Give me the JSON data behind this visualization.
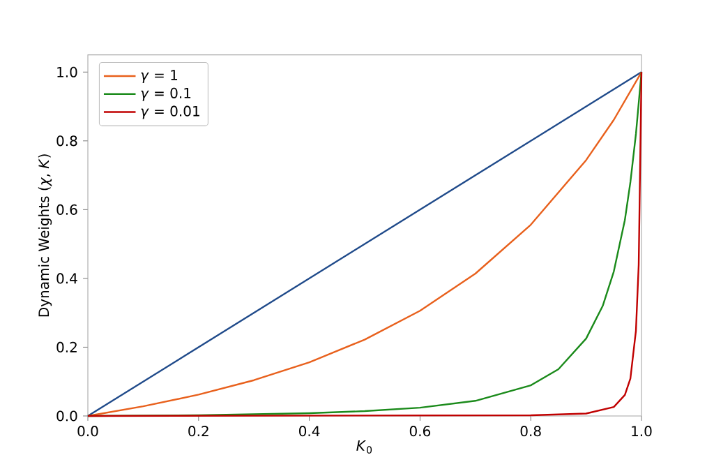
{
  "chart_data": {
    "type": "line",
    "xlabel": "*K*$_{0}$",
    "ylabel": "Dynamic Weights (*χ*, *K*)",
    "xlim": [
      0,
      1
    ],
    "ylim": [
      0,
      1.05
    ],
    "xticks": [
      {
        "value": 0,
        "label": "0.0"
      },
      0.2,
      0.4,
      0.6,
      0.8,
      {
        "value": 1,
        "label": "1.0"
      }
    ],
    "yticks": [
      {
        "value": 0,
        "label": "0.0"
      },
      0.2,
      0.4,
      0.6,
      0.8,
      {
        "value": 1,
        "label": "1.0"
      }
    ],
    "legend": "top left",
    "series": [
      {
        "color": "#1f4a8a",
        "x": [
          0,
          1
        ],
        "values": [
          0,
          1
        ]
      },
      {
        "name": "*γ* = 1",
        "color": "#e8601c",
        "x": [
          0,
          0.1,
          0.2,
          0.3,
          0.4,
          0.5,
          0.6,
          0.7,
          0.8,
          0.9,
          0.95,
          1
        ],
        "values": [
          0,
          0.028,
          0.062,
          0.104,
          0.156,
          0.222,
          0.306,
          0.414,
          0.556,
          0.744,
          0.861,
          1
        ]
      },
      {
        "name": "*γ* = 0.1",
        "color": "#1a8a1a",
        "x": [
          0,
          0.2,
          0.4,
          0.5,
          0.6,
          0.7,
          0.8,
          0.85,
          0.9,
          0.93,
          0.95,
          0.97,
          0.98,
          0.99,
          1
        ],
        "values": [
          0,
          0.002,
          0.008,
          0.014,
          0.024,
          0.044,
          0.089,
          0.136,
          0.225,
          0.32,
          0.42,
          0.57,
          0.68,
          0.82,
          1
        ]
      },
      {
        "name": "*γ* = 0.01",
        "color": "#c00000",
        "x": [
          0,
          0.8,
          0.9,
          0.95,
          0.97,
          0.98,
          0.99,
          0.995,
          1
        ],
        "values": [
          0,
          0.002,
          0.007,
          0.026,
          0.061,
          0.109,
          0.248,
          0.44,
          1
        ]
      }
    ]
  }
}
